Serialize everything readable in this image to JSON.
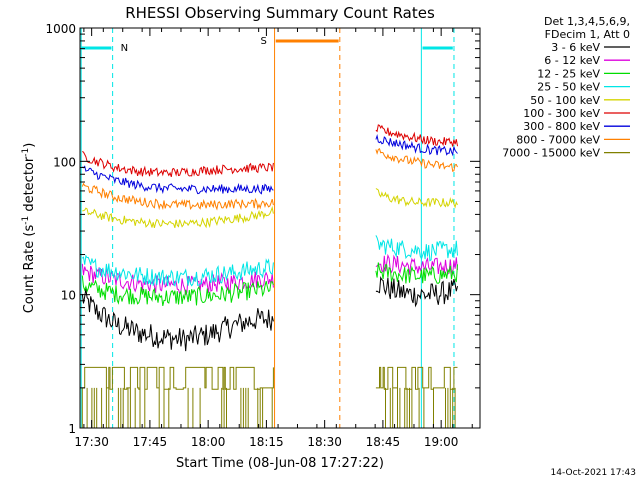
{
  "chart_data": {
    "type": "line",
    "title": "RHESSI Observing Summary Count Rates",
    "xlabel": "Start Time (08-Jun-08 17:27:22)",
    "ylabel_main": "Count Rate (s",
    "ylabel_sup1": "-1",
    "ylabel_mid": " detector",
    "ylabel_sup2": "-1",
    "ylabel_end": ")",
    "y_scale": "log",
    "x_range_min": [
      17.45,
      19.1667
    ],
    "y_range": [
      1,
      1000
    ],
    "x_ticks": [
      {
        "label": "17:30",
        "value": 17.5
      },
      {
        "label": "17:45",
        "value": 17.75
      },
      {
        "label": "18:00",
        "value": 18.0
      },
      {
        "label": "18:15",
        "value": 18.25
      },
      {
        "label": "18:30",
        "value": 18.5
      },
      {
        "label": "18:45",
        "value": 18.75
      },
      {
        "label": "19:00",
        "value": 19.0
      }
    ],
    "y_ticks": [
      {
        "label": "1",
        "value": 1
      },
      {
        "label": "10",
        "value": 10
      },
      {
        "label": "100",
        "value": 100
      },
      {
        "label": "1000",
        "value": 1000
      }
    ],
    "legend_header": [
      "Det 1,3,4,5,6,9,",
      "FDecim 1, Att 0"
    ],
    "legend_position": "right",
    "series": [
      {
        "name": "3 - 6 keV",
        "color": "#000000",
        "segments": [
          {
            "x": [
              17.46,
              17.52,
              17.6,
              17.7,
              17.8,
              17.9,
              18.0,
              18.1,
              18.2,
              18.28
            ],
            "y": [
              9.5,
              7.5,
              6.0,
              5.2,
              4.8,
              4.6,
              5.0,
              5.8,
              6.5,
              6.6
            ]
          },
          {
            "x": [
              18.72,
              18.78,
              18.85,
              18.9,
              18.95,
              19.0,
              19.07
            ],
            "y": [
              12.5,
              11.0,
              10.2,
              10.0,
              10.0,
              10.2,
              10.8
            ]
          }
        ]
      },
      {
        "name": "6 - 12 keV",
        "color": "#dd00dd",
        "segments": [
          {
            "x": [
              17.46,
              17.52,
              17.6,
              17.7,
              17.8,
              17.9,
              18.0,
              18.1,
              18.2,
              18.28
            ],
            "y": [
              15.0,
              14.0,
              13.0,
              12.2,
              11.8,
              11.8,
              12.0,
              12.4,
              13.0,
              13.2
            ]
          },
          {
            "x": [
              18.72,
              18.78,
              18.85,
              18.9,
              18.95,
              19.0,
              19.07
            ],
            "y": [
              17.5,
              17.0,
              16.5,
              16.2,
              16.0,
              16.2,
              16.8
            ]
          }
        ]
      },
      {
        "name": "12 - 25 keV",
        "color": "#00dd00",
        "segments": [
          {
            "x": [
              17.46,
              17.52,
              17.6,
              17.7,
              17.8,
              17.9,
              18.0,
              18.1,
              18.2,
              18.28
            ],
            "y": [
              12.0,
              11.0,
              10.2,
              9.8,
              9.6,
              9.6,
              9.8,
              10.2,
              10.8,
              11.0
            ]
          },
          {
            "x": [
              18.72,
              18.78,
              18.85,
              18.9,
              18.95,
              19.0,
              19.07
            ],
            "y": [
              15.0,
              14.5,
              14.0,
              13.8,
              13.8,
              14.0,
              14.5
            ]
          }
        ]
      },
      {
        "name": "25 - 50 keV",
        "color": "#00e6e6",
        "segments": [
          {
            "x": [
              17.46,
              17.52,
              17.6,
              17.7,
              17.8,
              17.9,
              18.0,
              18.1,
              18.2,
              18.28
            ],
            "y": [
              17.5,
              16.0,
              15.0,
              14.0,
              13.5,
              13.5,
              14.0,
              14.5,
              15.5,
              16.0
            ]
          },
          {
            "x": [
              18.72,
              18.78,
              18.85,
              18.9,
              18.95,
              19.0,
              19.07
            ],
            "y": [
              24.0,
              23.0,
              22.0,
              21.5,
              21.0,
              21.5,
              22.0
            ]
          }
        ]
      },
      {
        "name": "50 - 100 keV",
        "color": "#d4d400",
        "segments": [
          {
            "x": [
              17.46,
              17.52,
              17.6,
              17.7,
              17.8,
              17.9,
              18.0,
              18.1,
              18.2,
              18.28
            ],
            "y": [
              42.0,
              40.0,
              37.0,
              35.0,
              34.0,
              34.0,
              35.0,
              37.0,
              39.0,
              42.0
            ]
          },
          {
            "x": [
              18.72,
              18.78,
              18.85,
              18.9,
              18.95,
              19.0,
              19.07
            ],
            "y": [
              58.0,
              53.0,
              50.0,
              49.0,
              49.0,
              49.0,
              49.0
            ]
          }
        ]
      },
      {
        "name": "100 - 300 keV",
        "color": "#dd0000",
        "segments": [
          {
            "x": [
              17.46,
              17.52,
              17.6,
              17.7,
              17.8,
              17.9,
              18.0,
              18.1,
              18.2,
              18.28
            ],
            "y": [
              110.0,
              100.0,
              90.0,
              84.0,
              82.0,
              83.0,
              86.0,
              88.0,
              89.0,
              90.0
            ]
          },
          {
            "x": [
              18.72,
              18.78,
              18.85,
              18.9,
              18.95,
              19.0,
              19.07
            ],
            "y": [
              175.0,
              165.0,
              155.0,
              148.0,
              143.0,
              140.0,
              140.0
            ]
          }
        ]
      },
      {
        "name": "300 - 800 keV",
        "color": "#0000dd",
        "segments": [
          {
            "x": [
              17.46,
              17.52,
              17.6,
              17.7,
              17.8,
              17.9,
              18.0,
              18.1,
              18.2,
              18.28
            ],
            "y": [
              88.0,
              80.0,
              72.0,
              66.0,
              63.0,
              62.0,
              62.0,
              62.0,
              62.0,
              62.0
            ]
          },
          {
            "x": [
              18.72,
              18.78,
              18.85,
              18.9,
              18.95,
              19.0,
              19.07
            ],
            "y": [
              150.0,
              140.0,
              132.0,
              126.0,
              122.0,
              120.0,
              118.0
            ]
          }
        ]
      },
      {
        "name": "800 - 7000 keV",
        "color": "#ff8000",
        "segments": [
          {
            "x": [
              17.46,
              17.52,
              17.6,
              17.7,
              17.8,
              17.9,
              18.0,
              18.1,
              18.2,
              18.28
            ],
            "y": [
              65.0,
              60.0,
              54.0,
              50.0,
              48.0,
              47.0,
              47.0,
              48.0,
              48.0,
              49.0
            ]
          },
          {
            "x": [
              18.72,
              18.78,
              18.85,
              18.9,
              18.95,
              19.0,
              19.07
            ],
            "y": [
              120.0,
              110.0,
              102.0,
              98.0,
              95.0,
              92.0,
              90.0
            ]
          }
        ]
      },
      {
        "name": "7000 - 15000 keV",
        "color": "#808000",
        "segments": [
          {
            "x": [
              17.46,
              17.6,
              17.7,
              17.8,
              17.9,
              18.0,
              18.1,
              18.2,
              18.28
            ],
            "y": [
              2.0,
              2.0,
              2.0,
              2.0,
              2.0,
              2.0,
              2.0,
              2.0,
              2.0
            ]
          },
          {
            "x": [
              18.72,
              18.85,
              18.95,
              19.07
            ],
            "y": [
              2.0,
              2.0,
              2.0,
              2.0
            ]
          }
        ]
      }
    ],
    "annotations": [
      {
        "label": "N",
        "color": "#00e6e6"
      },
      {
        "label": "S",
        "color": "#ff8000"
      }
    ]
  },
  "footer_timestamp": "14-Oct-2021 17:43"
}
